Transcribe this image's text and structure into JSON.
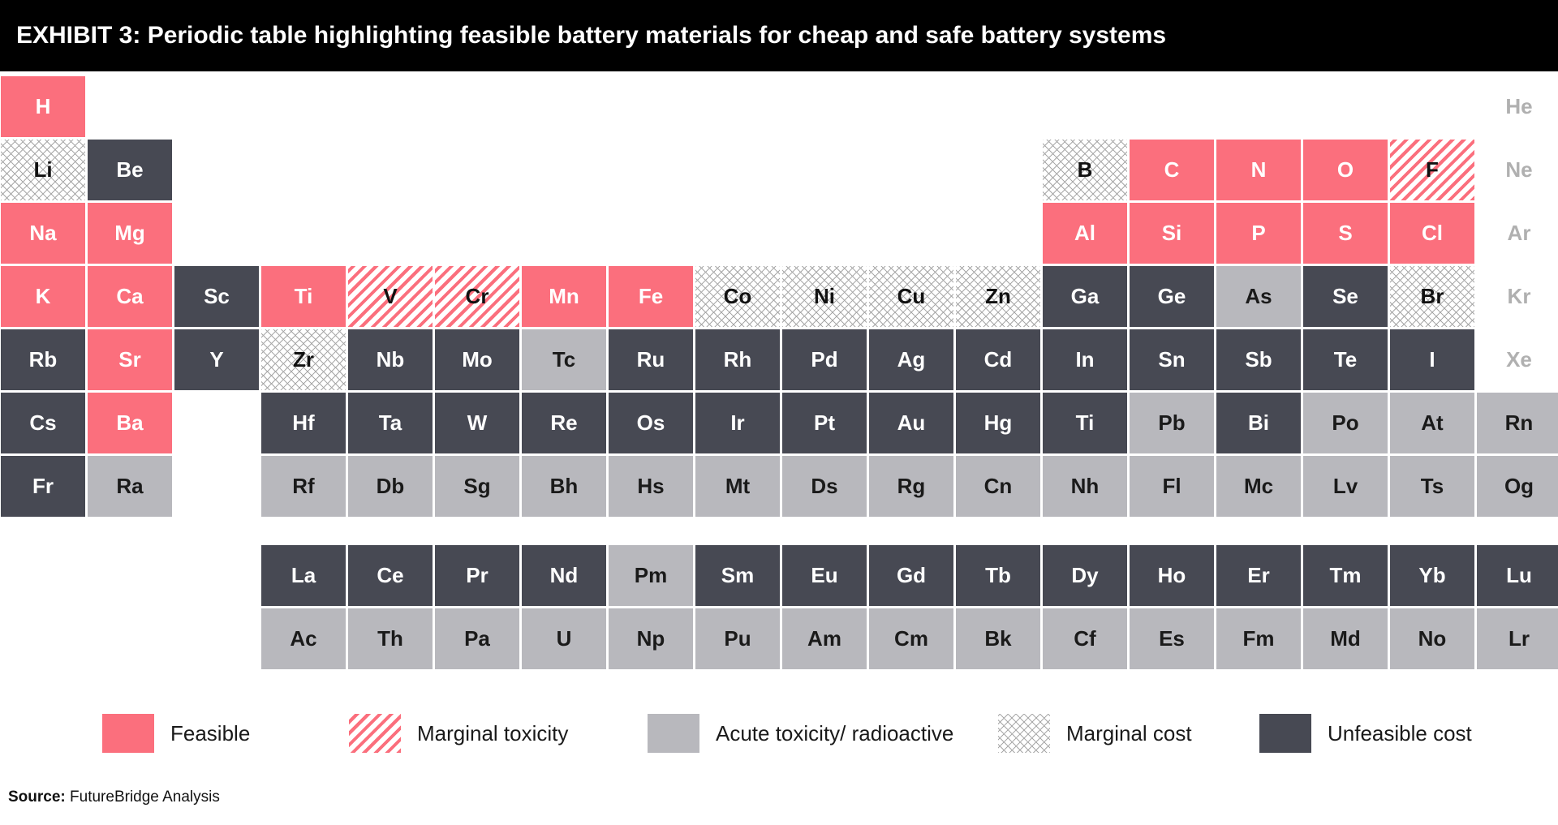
{
  "title": "EXHIBIT 3: Periodic table highlighting feasible battery materials for cheap and safe battery systems",
  "categories": {
    "feasible": "Feasible",
    "marginal_toxicity": "Marginal toxicity",
    "acute_toxicity": "Acute toxicity/ radioactive",
    "marginal_cost": "Marginal cost",
    "unfeasible_cost": "Unfeasible cost"
  },
  "colors": {
    "feasible": "#fb6f7d",
    "unfeasible_cost": "#474953",
    "acute_toxicity": "#b8b8bd",
    "noble_text": "#b0b0b0",
    "header_bg": "#000000"
  },
  "elements": [
    {
      "symbol": "H",
      "category": "feasible",
      "col": 1,
      "row": 1
    },
    {
      "symbol": "He",
      "category": "noble",
      "col": 18,
      "row": 1
    },
    {
      "symbol": "Li",
      "category": "marginal_cost",
      "col": 1,
      "row": 2
    },
    {
      "symbol": "Be",
      "category": "unfeasible_cost",
      "col": 2,
      "row": 2
    },
    {
      "symbol": "B",
      "category": "marginal_cost",
      "col": 13,
      "row": 2
    },
    {
      "symbol": "C",
      "category": "feasible",
      "col": 14,
      "row": 2
    },
    {
      "symbol": "N",
      "category": "feasible",
      "col": 15,
      "row": 2
    },
    {
      "symbol": "O",
      "category": "feasible",
      "col": 16,
      "row": 2
    },
    {
      "symbol": "F",
      "category": "marginal_toxicity",
      "col": 17,
      "row": 2
    },
    {
      "symbol": "Ne",
      "category": "noble",
      "col": 18,
      "row": 2
    },
    {
      "symbol": "Na",
      "category": "feasible",
      "col": 1,
      "row": 3
    },
    {
      "symbol": "Mg",
      "category": "feasible",
      "col": 2,
      "row": 3
    },
    {
      "symbol": "Al",
      "category": "feasible",
      "col": 13,
      "row": 3
    },
    {
      "symbol": "Si",
      "category": "feasible",
      "col": 14,
      "row": 3
    },
    {
      "symbol": "P",
      "category": "feasible",
      "col": 15,
      "row": 3
    },
    {
      "symbol": "S",
      "category": "feasible",
      "col": 16,
      "row": 3
    },
    {
      "symbol": "Cl",
      "category": "feasible",
      "col": 17,
      "row": 3
    },
    {
      "symbol": "Ar",
      "category": "noble",
      "col": 18,
      "row": 3
    },
    {
      "symbol": "K",
      "category": "feasible",
      "col": 1,
      "row": 4
    },
    {
      "symbol": "Ca",
      "category": "feasible",
      "col": 2,
      "row": 4
    },
    {
      "symbol": "Sc",
      "category": "unfeasible_cost",
      "col": 3,
      "row": 4
    },
    {
      "symbol": "Ti",
      "category": "feasible",
      "col": 4,
      "row": 4
    },
    {
      "symbol": "V",
      "category": "marginal_toxicity",
      "col": 5,
      "row": 4
    },
    {
      "symbol": "Cr",
      "category": "marginal_toxicity",
      "col": 6,
      "row": 4
    },
    {
      "symbol": "Mn",
      "category": "feasible",
      "col": 7,
      "row": 4
    },
    {
      "symbol": "Fe",
      "category": "feasible",
      "col": 8,
      "row": 4
    },
    {
      "symbol": "Co",
      "category": "marginal_cost",
      "col": 9,
      "row": 4
    },
    {
      "symbol": "Ni",
      "category": "marginal_cost",
      "col": 10,
      "row": 4
    },
    {
      "symbol": "Cu",
      "category": "marginal_cost",
      "col": 11,
      "row": 4
    },
    {
      "symbol": "Zn",
      "category": "marginal_cost",
      "col": 12,
      "row": 4
    },
    {
      "symbol": "Ga",
      "category": "unfeasible_cost",
      "col": 13,
      "row": 4
    },
    {
      "symbol": "Ge",
      "category": "unfeasible_cost",
      "col": 14,
      "row": 4
    },
    {
      "symbol": "As",
      "category": "acute_toxicity",
      "col": 15,
      "row": 4
    },
    {
      "symbol": "Se",
      "category": "unfeasible_cost",
      "col": 16,
      "row": 4
    },
    {
      "symbol": "Br",
      "category": "marginal_cost",
      "col": 17,
      "row": 4
    },
    {
      "symbol": "Kr",
      "category": "noble",
      "col": 18,
      "row": 4
    },
    {
      "symbol": "Rb",
      "category": "unfeasible_cost",
      "col": 1,
      "row": 5
    },
    {
      "symbol": "Sr",
      "category": "feasible",
      "col": 2,
      "row": 5
    },
    {
      "symbol": "Y",
      "category": "unfeasible_cost",
      "col": 3,
      "row": 5
    },
    {
      "symbol": "Zr",
      "category": "marginal_cost",
      "col": 4,
      "row": 5
    },
    {
      "symbol": "Nb",
      "category": "unfeasible_cost",
      "col": 5,
      "row": 5
    },
    {
      "symbol": "Mo",
      "category": "unfeasible_cost",
      "col": 6,
      "row": 5
    },
    {
      "symbol": "Tc",
      "category": "acute_toxicity",
      "col": 7,
      "row": 5
    },
    {
      "symbol": "Ru",
      "category": "unfeasible_cost",
      "col": 8,
      "row": 5
    },
    {
      "symbol": "Rh",
      "category": "unfeasible_cost",
      "col": 9,
      "row": 5
    },
    {
      "symbol": "Pd",
      "category": "unfeasible_cost",
      "col": 10,
      "row": 5
    },
    {
      "symbol": "Ag",
      "category": "unfeasible_cost",
      "col": 11,
      "row": 5
    },
    {
      "symbol": "Cd",
      "category": "unfeasible_cost",
      "col": 12,
      "row": 5
    },
    {
      "symbol": "In",
      "category": "unfeasible_cost",
      "col": 13,
      "row": 5
    },
    {
      "symbol": "Sn",
      "category": "unfeasible_cost",
      "col": 14,
      "row": 5
    },
    {
      "symbol": "Sb",
      "category": "unfeasible_cost",
      "col": 15,
      "row": 5
    },
    {
      "symbol": "Te",
      "category": "unfeasible_cost",
      "col": 16,
      "row": 5
    },
    {
      "symbol": "I",
      "category": "unfeasible_cost",
      "col": 17,
      "row": 5
    },
    {
      "symbol": "Xe",
      "category": "noble",
      "col": 18,
      "row": 5
    },
    {
      "symbol": "Cs",
      "category": "unfeasible_cost",
      "col": 1,
      "row": 6
    },
    {
      "symbol": "Ba",
      "category": "feasible",
      "col": 2,
      "row": 6
    },
    {
      "symbol": "Hf",
      "category": "unfeasible_cost",
      "col": 4,
      "row": 6
    },
    {
      "symbol": "Ta",
      "category": "unfeasible_cost",
      "col": 5,
      "row": 6
    },
    {
      "symbol": "W",
      "category": "unfeasible_cost",
      "col": 6,
      "row": 6
    },
    {
      "symbol": "Re",
      "category": "unfeasible_cost",
      "col": 7,
      "row": 6
    },
    {
      "symbol": "Os",
      "category": "unfeasible_cost",
      "col": 8,
      "row": 6
    },
    {
      "symbol": "Ir",
      "category": "unfeasible_cost",
      "col": 9,
      "row": 6
    },
    {
      "symbol": "Pt",
      "category": "unfeasible_cost",
      "col": 10,
      "row": 6
    },
    {
      "symbol": "Au",
      "category": "unfeasible_cost",
      "col": 11,
      "row": 6
    },
    {
      "symbol": "Hg",
      "category": "unfeasible_cost",
      "col": 12,
      "row": 6
    },
    {
      "symbol": "Ti",
      "category": "unfeasible_cost",
      "col": 13,
      "row": 6
    },
    {
      "symbol": "Pb",
      "category": "acute_toxicity",
      "col": 14,
      "row": 6
    },
    {
      "symbol": "Bi",
      "category": "unfeasible_cost",
      "col": 15,
      "row": 6
    },
    {
      "symbol": "Po",
      "category": "acute_toxicity",
      "col": 16,
      "row": 6
    },
    {
      "symbol": "At",
      "category": "acute_toxicity",
      "col": 17,
      "row": 6
    },
    {
      "symbol": "Rn",
      "category": "acute_toxicity",
      "col": 18,
      "row": 6
    },
    {
      "symbol": "Fr",
      "category": "unfeasible_cost",
      "col": 1,
      "row": 7
    },
    {
      "symbol": "Ra",
      "category": "acute_toxicity",
      "col": 2,
      "row": 7
    },
    {
      "symbol": "Rf",
      "category": "acute_toxicity",
      "col": 4,
      "row": 7
    },
    {
      "symbol": "Db",
      "category": "acute_toxicity",
      "col": 5,
      "row": 7
    },
    {
      "symbol": "Sg",
      "category": "acute_toxicity",
      "col": 6,
      "row": 7
    },
    {
      "symbol": "Bh",
      "category": "acute_toxicity",
      "col": 7,
      "row": 7
    },
    {
      "symbol": "Hs",
      "category": "acute_toxicity",
      "col": 8,
      "row": 7
    },
    {
      "symbol": "Mt",
      "category": "acute_toxicity",
      "col": 9,
      "row": 7
    },
    {
      "symbol": "Ds",
      "category": "acute_toxicity",
      "col": 10,
      "row": 7
    },
    {
      "symbol": "Rg",
      "category": "acute_toxicity",
      "col": 11,
      "row": 7
    },
    {
      "symbol": "Cn",
      "category": "acute_toxicity",
      "col": 12,
      "row": 7
    },
    {
      "symbol": "Nh",
      "category": "acute_toxicity",
      "col": 13,
      "row": 7
    },
    {
      "symbol": "Fl",
      "category": "acute_toxicity",
      "col": 14,
      "row": 7
    },
    {
      "symbol": "Mc",
      "category": "acute_toxicity",
      "col": 15,
      "row": 7
    },
    {
      "symbol": "Lv",
      "category": "acute_toxicity",
      "col": 16,
      "row": 7
    },
    {
      "symbol": "Ts",
      "category": "acute_toxicity",
      "col": 17,
      "row": 7
    },
    {
      "symbol": "Og",
      "category": "acute_toxicity",
      "col": 18,
      "row": 7
    },
    {
      "symbol": "La",
      "category": "unfeasible_cost",
      "col": 4,
      "row": 8
    },
    {
      "symbol": "Ce",
      "category": "unfeasible_cost",
      "col": 5,
      "row": 8
    },
    {
      "symbol": "Pr",
      "category": "unfeasible_cost",
      "col": 6,
      "row": 8
    },
    {
      "symbol": "Nd",
      "category": "unfeasible_cost",
      "col": 7,
      "row": 8
    },
    {
      "symbol": "Pm",
      "category": "acute_toxicity",
      "col": 8,
      "row": 8
    },
    {
      "symbol": "Sm",
      "category": "unfeasible_cost",
      "col": 9,
      "row": 8
    },
    {
      "symbol": "Eu",
      "category": "unfeasible_cost",
      "col": 10,
      "row": 8
    },
    {
      "symbol": "Gd",
      "category": "unfeasible_cost",
      "col": 11,
      "row": 8
    },
    {
      "symbol": "Tb",
      "category": "unfeasible_cost",
      "col": 12,
      "row": 8
    },
    {
      "symbol": "Dy",
      "category": "unfeasible_cost",
      "col": 13,
      "row": 8
    },
    {
      "symbol": "Ho",
      "category": "unfeasible_cost",
      "col": 14,
      "row": 8
    },
    {
      "symbol": "Er",
      "category": "unfeasible_cost",
      "col": 15,
      "row": 8
    },
    {
      "symbol": "Tm",
      "category": "unfeasible_cost",
      "col": 16,
      "row": 8
    },
    {
      "symbol": "Yb",
      "category": "unfeasible_cost",
      "col": 17,
      "row": 8
    },
    {
      "symbol": "Lu",
      "category": "unfeasible_cost",
      "col": 18,
      "row": 8
    },
    {
      "symbol": "Ac",
      "category": "acute_toxicity",
      "col": 4,
      "row": 9
    },
    {
      "symbol": "Th",
      "category": "acute_toxicity",
      "col": 5,
      "row": 9
    },
    {
      "symbol": "Pa",
      "category": "acute_toxicity",
      "col": 6,
      "row": 9
    },
    {
      "symbol": "U",
      "category": "acute_toxicity",
      "col": 7,
      "row": 9
    },
    {
      "symbol": "Np",
      "category": "acute_toxicity",
      "col": 8,
      "row": 9
    },
    {
      "symbol": "Pu",
      "category": "acute_toxicity",
      "col": 9,
      "row": 9
    },
    {
      "symbol": "Am",
      "category": "acute_toxicity",
      "col": 10,
      "row": 9
    },
    {
      "symbol": "Cm",
      "category": "acute_toxicity",
      "col": 11,
      "row": 9
    },
    {
      "symbol": "Bk",
      "category": "acute_toxicity",
      "col": 12,
      "row": 9
    },
    {
      "symbol": "Cf",
      "category": "acute_toxicity",
      "col": 13,
      "row": 9
    },
    {
      "symbol": "Es",
      "category": "acute_toxicity",
      "col": 14,
      "row": 9
    },
    {
      "symbol": "Fm",
      "category": "acute_toxicity",
      "col": 15,
      "row": 9
    },
    {
      "symbol": "Md",
      "category": "acute_toxicity",
      "col": 16,
      "row": 9
    },
    {
      "symbol": "No",
      "category": "acute_toxicity",
      "col": 17,
      "row": 9
    },
    {
      "symbol": "Lr",
      "category": "acute_toxicity",
      "col": 18,
      "row": 9
    }
  ],
  "legend": [
    {
      "category": "feasible",
      "label": "Feasible"
    },
    {
      "category": "marginal_toxicity",
      "label": "Marginal toxicity"
    },
    {
      "category": "acute_toxicity",
      "label": "Acute toxicity/ radioactive"
    },
    {
      "category": "marginal_cost",
      "label": "Marginal cost"
    },
    {
      "category": "unfeasible_cost",
      "label": "Unfeasible cost"
    }
  ],
  "source": {
    "label": "Source:",
    "text": "FutureBridge Analysis"
  }
}
